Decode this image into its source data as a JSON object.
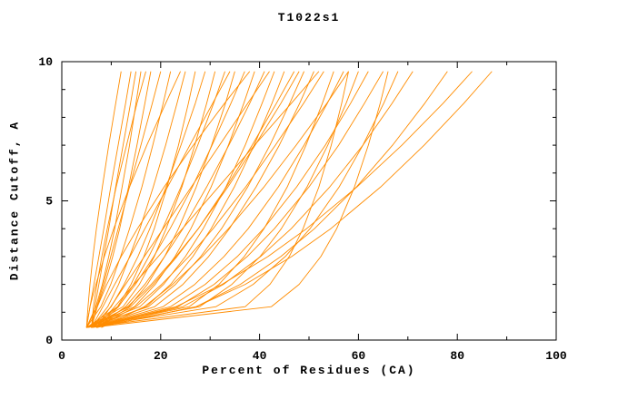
{
  "chart_data": {
    "type": "line",
    "title": "T1022s1",
    "xlabel": "Percent of Residues (CA)",
    "ylabel": "Distance Cutoff, A",
    "xlim": [
      0,
      100
    ],
    "ylim": [
      0,
      10
    ],
    "x_ticks": [
      0,
      20,
      40,
      60,
      80,
      100
    ],
    "x_minor_ticks": [
      10,
      30,
      50,
      70,
      90
    ],
    "y_ticks": [
      0,
      5,
      10
    ],
    "y_minor_ticks": [
      1,
      2,
      3,
      4,
      6,
      7,
      8,
      9
    ],
    "grid": false,
    "legend": null,
    "line_color": "#ff8c00",
    "axis_color": "#000000",
    "y_grid": [
      0.45,
      1.2,
      2,
      3,
      4,
      5.5,
      7,
      8.5,
      9.65
    ],
    "curves": [
      [
        5,
        5.3,
        5.7,
        6.3,
        7,
        8.2,
        9.5,
        10.9,
        12
      ],
      [
        5,
        5.7,
        6.5,
        7.5,
        8.5,
        9.9,
        11.4,
        12.9,
        14
      ],
      [
        6,
        6.7,
        7.5,
        8.5,
        9.5,
        10.9,
        12.4,
        13.9,
        15
      ],
      [
        5,
        6.9,
        8.2,
        9.5,
        10.7,
        12.2,
        13.7,
        15,
        16
      ],
      [
        6,
        6.4,
        7.1,
        8.1,
        9.2,
        11,
        13.1,
        15.2,
        17
      ],
      [
        5,
        7.2,
        8.7,
        10.3,
        11.7,
        13.5,
        15.2,
        16.8,
        18
      ],
      [
        6,
        7.1,
        8.4,
        9.9,
        11.4,
        13.7,
        16,
        18.3,
        20
      ],
      [
        5,
        7.9,
        9.9,
        11.9,
        13.7,
        16.2,
        18.4,
        20.5,
        22
      ],
      [
        5,
        5.7,
        6.9,
        8.6,
        10.5,
        13.7,
        17.2,
        21,
        24
      ],
      [
        6,
        9.3,
        11.5,
        13.7,
        15.8,
        18.5,
        21,
        23.3,
        25
      ],
      [
        5,
        11.3,
        14,
        16.6,
        18.7,
        21.3,
        23.6,
        25.6,
        27
      ],
      [
        6,
        10,
        12.6,
        15.4,
        17.8,
        21.1,
        24.1,
        27,
        29
      ],
      [
        5,
        12.4,
        15.7,
        18.7,
        21.1,
        24.3,
        26.9,
        29.3,
        31
      ],
      [
        7,
        11.5,
        14.5,
        17.6,
        20.4,
        24.1,
        27.5,
        30.7,
        33
      ],
      [
        6,
        8.3,
        10.7,
        13.8,
        16.8,
        21.4,
        25.9,
        30.5,
        34
      ],
      [
        5,
        13.6,
        17.3,
        20.8,
        23.6,
        27.2,
        30.3,
        33.1,
        35
      ],
      [
        6,
        11.4,
        14.9,
        18.6,
        21.9,
        26.4,
        30.4,
        34.2,
        37
      ],
      [
        6,
        7.2,
        9.1,
        12,
        15.3,
        20.7,
        26.6,
        32.9,
        38
      ],
      [
        5,
        14.7,
        18.9,
        22.9,
        26.1,
        30.2,
        33.7,
        36.8,
        39
      ],
      [
        7,
        12.9,
        16.8,
        20.8,
        24.5,
        29.3,
        33.8,
        38,
        41
      ],
      [
        7,
        9.9,
        12.9,
        16.7,
        20.5,
        26.2,
        31.9,
        37.6,
        42
      ],
      [
        5,
        15.8,
        20.6,
        25,
        28.6,
        33.2,
        37.1,
        40.5,
        43
      ],
      [
        6,
        17.1,
        22,
        26.5,
        30.2,
        34.9,
        38.9,
        42.5,
        45
      ],
      [
        7,
        13.9,
        18.5,
        23.3,
        27.6,
        33.3,
        38.5,
        43.4,
        47
      ],
      [
        6,
        13.3,
        18.1,
        23.1,
        27.6,
        33.6,
        39.1,
        44.3,
        48
      ],
      [
        5,
        17.5,
        23,
        28.1,
        32.3,
        37.6,
        42.1,
        46.1,
        49
      ],
      [
        6,
        18.8,
        24.5,
        29.7,
        33.9,
        39.3,
        44,
        48.1,
        51
      ],
      [
        7,
        10.7,
        14.6,
        19.5,
        24.4,
        31.7,
        39,
        46.4,
        52
      ],
      [
        7,
        15,
        20.2,
        25.7,
        30.6,
        37.2,
        43.2,
        48.9,
        53
      ],
      [
        5,
        25.8,
        31.8,
        36.9,
        40.9,
        45.6,
        49.4,
        52.7,
        55
      ],
      [
        6,
        20.5,
        26.9,
        32.8,
        37.7,
        43.8,
        49,
        53.7,
        57
      ],
      [
        8,
        16.7,
        22.4,
        28.4,
        33.7,
        40.9,
        47.4,
        53.6,
        58
      ],
      [
        5,
        37.1,
        42.1,
        46,
        48.8,
        52,
        54.5,
        56.6,
        58
      ],
      [
        5,
        27.9,
        34.4,
        40.1,
        44.4,
        49.6,
        53.8,
        57.5,
        60
      ],
      [
        6,
        22,
        29,
        35.5,
        40.8,
        47.5,
        53.3,
        58.4,
        62
      ],
      [
        7,
        23.5,
        30.8,
        37.5,
        43,
        50,
        56,
        61.2,
        65
      ],
      [
        6,
        42.4,
        48,
        52.4,
        55.6,
        59.2,
        62,
        64.4,
        66
      ],
      [
        5,
        31.2,
        38.7,
        45.2,
        50.2,
        56.1,
        60.9,
        65.1,
        68
      ],
      [
        6,
        24.5,
        32.7,
        40.2,
        46.4,
        54.2,
        60.9,
        66.8,
        71
      ],
      [
        7,
        27.2,
        36.1,
        44.3,
        51.1,
        59.6,
        66.9,
        73.4,
        78
      ],
      [
        6,
        23.1,
        32.4,
        41.7,
        49.5,
        59.7,
        68.8,
        77.1,
        83
      ],
      [
        7,
        27.2,
        37.1,
        46.5,
        54.4,
        64.5,
        73.3,
        81.3,
        87
      ]
    ]
  }
}
